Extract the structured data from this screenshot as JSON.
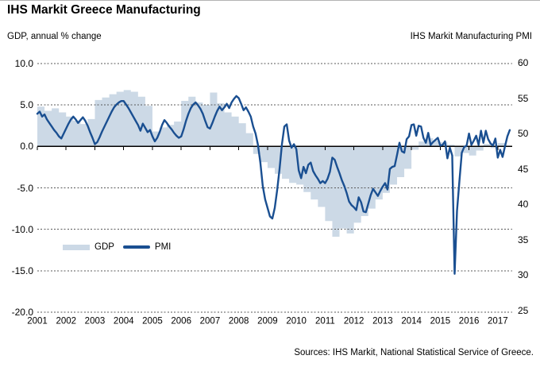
{
  "page": {
    "title": "IHS Markit Greece Manufacturing",
    "left_axis_title": "GDP, annual % change",
    "right_axis_title": "IHS Markit Manufacturing PMI",
    "source": "Sources: IHS Markit, National Statistical Service of Greece."
  },
  "legend": {
    "gdp_label": "GDP",
    "pmi_label": "PMI"
  },
  "chart_data": {
    "type": "area",
    "subtype": "combo-area-line-dual-axis",
    "title": "IHS Markit Greece Manufacturing",
    "grid": "horizontal dashed at left-axis ticks, solid black zero line with yearly tick marks",
    "legend_position": "inside lower-left",
    "x_axis": {
      "start": 2001.0,
      "end": 2017.5,
      "tick_labels": [
        "2001",
        "2002",
        "2003",
        "2004",
        "2005",
        "2006",
        "2007",
        "2008",
        "2009",
        "2010",
        "2011",
        "2012",
        "2013",
        "2014",
        "2015",
        "2016",
        "2017"
      ]
    },
    "left_axis": {
      "title": "GDP, annual % change",
      "min": -20,
      "max": 10,
      "tick_labels": [
        "10.0",
        "5.0",
        "0.0",
        "-5.0",
        "-10.0",
        "-15.0",
        "-20.0"
      ]
    },
    "right_axis": {
      "title": "IHS Markit Manufacturing PMI",
      "min": 25,
      "max": 60,
      "tick_labels": [
        "60",
        "55",
        "50",
        "45",
        "40",
        "35",
        "30",
        "25"
      ]
    },
    "series": [
      {
        "name": "GDP",
        "type": "area",
        "axis": "left",
        "frequency": "quarterly",
        "start": "2001Q1",
        "color": "#ccd9e6",
        "values": [
          4.8,
          4.3,
          4.6,
          4.1,
          3.6,
          3.1,
          2.7,
          3.3,
          5.6,
          5.9,
          6.3,
          6.6,
          6.8,
          6.6,
          6.0,
          4.9,
          1.8,
          2.3,
          2.6,
          3.0,
          5.5,
          6.0,
          5.3,
          5.0,
          6.5,
          5.2,
          4.1,
          3.6,
          2.8,
          1.6,
          -0.9,
          -1.9,
          -2.6,
          -3.3,
          -3.9,
          -4.4,
          -4.6,
          -5.5,
          -6.4,
          -7.3,
          -9.0,
          -10.9,
          -9.9,
          -10.5,
          -9.2,
          -8.4,
          -7.5,
          -6.4,
          -5.6,
          -4.6,
          -3.7,
          -2.7,
          -0.4,
          0.6,
          1.0,
          0.7,
          0.5,
          0.2,
          -1.2,
          -0.8,
          -1.1,
          -0.5,
          0.3,
          -0.2,
          0.4
        ]
      },
      {
        "name": "PMI",
        "type": "line",
        "axis": "right",
        "frequency": "monthly",
        "start": "2001-01",
        "color": "#1a4f91",
        "values": [
          52.8,
          53.1,
          52.4,
          52.7,
          52.0,
          51.5,
          51.0,
          50.5,
          50.1,
          49.6,
          49.3,
          50.0,
          50.7,
          51.4,
          52.0,
          52.4,
          52.0,
          51.5,
          51.9,
          52.3,
          51.8,
          51.1,
          50.2,
          49.4,
          48.5,
          48.8,
          49.5,
          50.3,
          51.0,
          51.7,
          52.4,
          53.1,
          53.7,
          54.1,
          54.4,
          54.6,
          54.6,
          54.1,
          53.6,
          53.0,
          52.4,
          51.8,
          51.2,
          50.4,
          51.4,
          50.8,
          50.2,
          50.5,
          49.6,
          48.9,
          49.4,
          50.2,
          51.2,
          51.9,
          51.5,
          51.0,
          50.6,
          50.1,
          49.7,
          49.4,
          49.6,
          50.6,
          51.8,
          52.8,
          53.6,
          54.1,
          54.4,
          54.0,
          53.5,
          52.8,
          51.8,
          50.9,
          50.7,
          51.5,
          52.4,
          53.2,
          53.8,
          53.3,
          53.7,
          54.2,
          53.6,
          54.4,
          54.9,
          55.3,
          55.0,
          54.2,
          53.3,
          53.7,
          53.1,
          52.4,
          51.0,
          50.0,
          48.4,
          45.9,
          42.6,
          40.7,
          39.5,
          38.3,
          38.0,
          39.5,
          42.0,
          45.0,
          48.5,
          51.0,
          51.3,
          49.0,
          48.0,
          48.5,
          47.8,
          44.8,
          43.7,
          45.3,
          44.4,
          45.6,
          45.9,
          44.7,
          44.1,
          43.6,
          43.0,
          43.3,
          43.0,
          43.6,
          44.6,
          46.6,
          46.3,
          45.3,
          44.4,
          43.4,
          42.6,
          41.6,
          40.4,
          39.9,
          39.6,
          39.2,
          41.0,
          40.3,
          39.0,
          38.9,
          40.1,
          41.3,
          42.2,
          41.7,
          41.2,
          41.9,
          42.5,
          43.0,
          42.1,
          45.0,
          45.3,
          45.4,
          47.0,
          48.7,
          47.5,
          47.3,
          49.2,
          49.6,
          51.2,
          51.3,
          49.7,
          51.1,
          51.0,
          49.4,
          48.7,
          50.1,
          48.4,
          48.8,
          49.1,
          49.4,
          48.3,
          48.4,
          48.9,
          46.5,
          48.0,
          46.9,
          30.2,
          39.1,
          43.3,
          47.3,
          48.1,
          48.3,
          50.0,
          48.4,
          49.0,
          49.7,
          48.4,
          50.4,
          48.7,
          50.4,
          49.2,
          48.6,
          48.3,
          49.3,
          46.6,
          47.7,
          46.7,
          48.2,
          49.6,
          50.5
        ]
      }
    ],
    "source": "Sources: IHS Markit, National Statistical Service of Greece."
  }
}
